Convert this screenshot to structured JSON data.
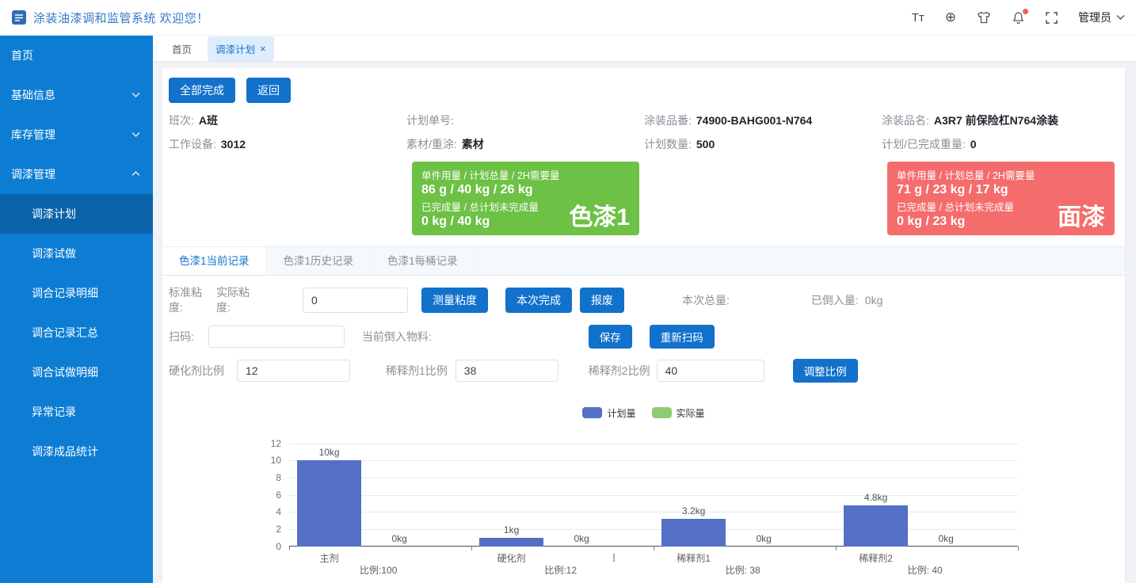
{
  "header": {
    "title": "涂装油漆调和监管系统 欢迎您！",
    "font_icon_text": "Tт",
    "target_icon_text": "⊕",
    "user_menu": "管理员"
  },
  "sidebar": {
    "items": [
      {
        "label": "首页"
      },
      {
        "label": "基础信息"
      },
      {
        "label": "库存管理"
      },
      {
        "label": "调漆管理"
      }
    ],
    "submenu": [
      {
        "label": "调漆计划",
        "active": true
      },
      {
        "label": "调漆试做",
        "active": false
      },
      {
        "label": "调合记录明细",
        "active": false
      },
      {
        "label": "调合记录汇总",
        "active": false
      },
      {
        "label": "调合试做明细",
        "active": false
      },
      {
        "label": "异常记录",
        "active": false
      },
      {
        "label": "调漆成品统计",
        "active": false
      }
    ]
  },
  "tabs_bar": {
    "tabs": [
      {
        "label": "首页",
        "active": false
      },
      {
        "label": "调漆计划",
        "active": true
      }
    ],
    "close_icon": "×"
  },
  "toolbar": {
    "complete_all_label": "全部完成",
    "back_label": "返回"
  },
  "info": {
    "fields": [
      {
        "label": "班次:",
        "value": "A班"
      },
      {
        "label": "计划单号:",
        "value": ""
      },
      {
        "label": "涂装品番:",
        "value": "74900-BAHG001-N764"
      },
      {
        "label": "涂装品名:",
        "value": "A3R7 前保险杠N764涂装"
      },
      {
        "label": "工作设备:",
        "value": "3012"
      },
      {
        "label": "素材/重涂:",
        "value": "素材"
      },
      {
        "label": "计划数量:",
        "value": "500"
      },
      {
        "label": "计划/已完成重量:",
        "value": "0"
      }
    ]
  },
  "paint_cards": {
    "usage_label": "单件用量 / 计划总量 / 2H需要量",
    "done_label": "已完成量 / 总计划未完成量",
    "cards": [
      {
        "name": "色漆1",
        "usage": "86 g / 40  kg / 26 kg",
        "done": "0 kg / 40  kg",
        "color": "#6dc145"
      },
      {
        "name": "面漆",
        "usage": "71 g / 23  kg / 17 kg",
        "done": "0 kg / 23  kg",
        "color": "#f56c6c"
      }
    ]
  },
  "record_tabs": {
    "tabs": [
      {
        "label": "色漆1当前记录",
        "active": true
      },
      {
        "label": "色漆1历史记录",
        "active": false
      },
      {
        "label": "色漆1每桶记录",
        "active": false
      }
    ]
  },
  "viscosity_row": {
    "std_label": "标准粘度:",
    "actual_label": "实际粘度:",
    "actual_value": "0",
    "measure_button": "测量粘度",
    "complete_button": "本次完成",
    "scrap_button": "报废",
    "total_label": "本次总量:",
    "total_value": "",
    "poured_label": "已倒入量:",
    "poured_value": "0kg"
  },
  "scan_row": {
    "label": "扫码:",
    "value": "",
    "current_material_label": "当前倒入物料:",
    "current_material_value": "",
    "save_button": "保存",
    "rescan_button": "重新扫码"
  },
  "ratio_row": {
    "hardener_label": "硬化剂比例",
    "hardener_value": "12",
    "thinner1_label": "稀释剂1比例",
    "thinner1_value": "38",
    "thinner2_label": "稀释剂2比例",
    "thinner2_value": "40",
    "adjust_button": "调整比例"
  },
  "chart_data": {
    "type": "bar",
    "categories": [
      "主剂",
      "硬化剂",
      "稀释剂1",
      "稀释剂2"
    ],
    "category_sublabels": [
      "比例:100",
      "比例:12",
      "比例: 38",
      "比例: 40"
    ],
    "series": [
      {
        "name": "计划量",
        "color": "#5470c6",
        "values": [
          10,
          1,
          3.2,
          4.8
        ],
        "value_labels": [
          "10kg",
          "1kg",
          "3.2kg",
          "4.8kg"
        ]
      },
      {
        "name": "实际量",
        "color": "#91cc75",
        "values": [
          0,
          0,
          0,
          0
        ],
        "value_labels": [
          "0kg",
          "0kg",
          "0kg",
          "0kg"
        ]
      }
    ],
    "ylim": [
      0,
      12
    ],
    "yticks": [
      0,
      2,
      4,
      6,
      8,
      10,
      12
    ],
    "grid": true,
    "legend_position": "top-center",
    "extra_axis_label": "|"
  }
}
